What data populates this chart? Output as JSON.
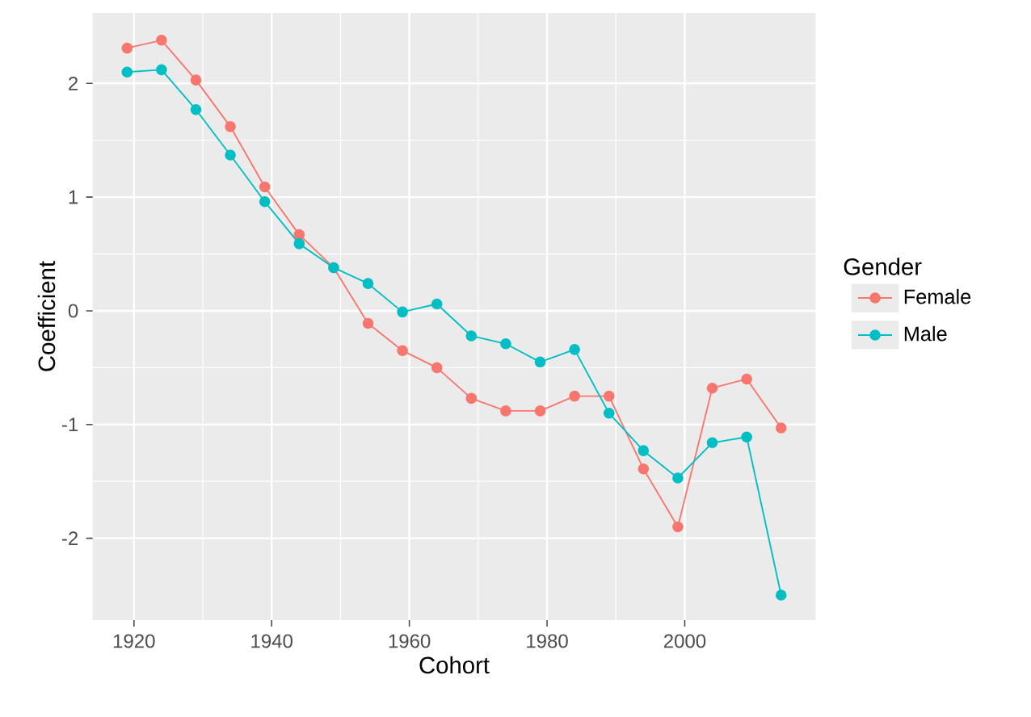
{
  "chart_data": {
    "type": "line",
    "xlabel": "Cohort",
    "ylabel": "Coefficient",
    "legend_title": "Gender",
    "x": [
      1919,
      1924,
      1929,
      1934,
      1939,
      1944,
      1949,
      1954,
      1959,
      1964,
      1969,
      1974,
      1979,
      1984,
      1989,
      1994,
      1999,
      2004,
      2009,
      2014
    ],
    "series": [
      {
        "name": "Female",
        "color": "#f8766d",
        "values": [
          2.31,
          2.38,
          2.03,
          1.62,
          1.09,
          0.67,
          0.38,
          -0.11,
          -0.35,
          -0.5,
          -0.77,
          -0.88,
          -0.88,
          -0.75,
          -0.75,
          -1.39,
          -1.9,
          -0.68,
          -0.6,
          -1.03
        ]
      },
      {
        "name": "Male",
        "color": "#00bfc4",
        "values": [
          2.1,
          2.12,
          1.77,
          1.37,
          0.96,
          0.59,
          0.38,
          0.24,
          -0.01,
          0.06,
          -0.22,
          -0.29,
          -0.45,
          -0.34,
          -0.9,
          -1.23,
          -1.47,
          -1.16,
          -1.11,
          -2.5
        ]
      }
    ],
    "xlim": [
      1914,
      2019
    ],
    "ylim": [
      -2.72,
      2.62
    ],
    "xticks": [
      1920,
      1940,
      1960,
      1980,
      2000
    ],
    "yticks": [
      -2,
      -1,
      0,
      1,
      2
    ],
    "grid": true,
    "legend": "right",
    "marker": "circle",
    "line_style": "solid"
  }
}
